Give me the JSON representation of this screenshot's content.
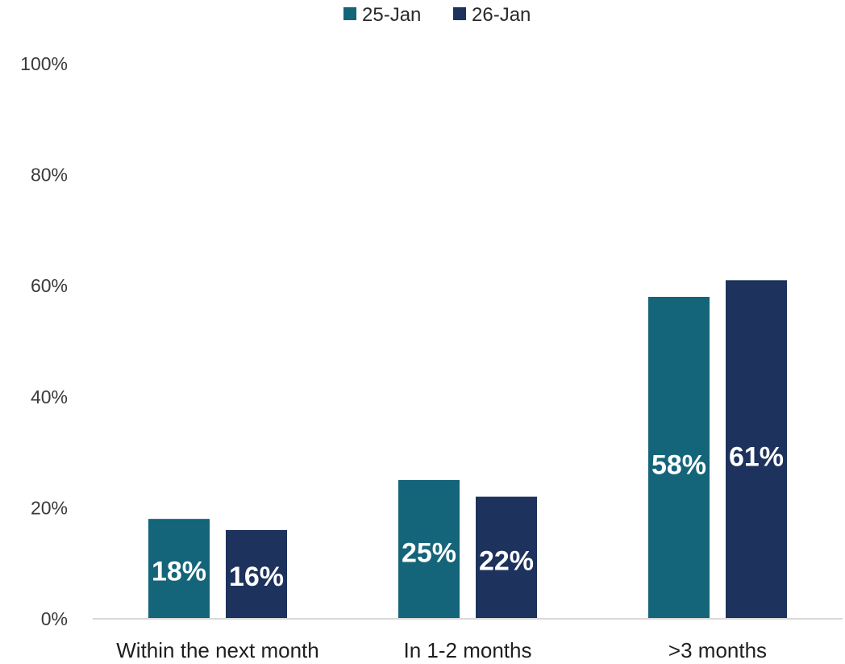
{
  "chart_data": {
    "type": "bar",
    "categories": [
      "Within the next month",
      "In 1-2 months",
      ">3 months"
    ],
    "series": [
      {
        "name": "25-Jan",
        "color": "#14647a",
        "values": [
          18,
          25,
          58
        ],
        "labels": [
          "18%",
          "25%",
          "58%"
        ]
      },
      {
        "name": "26-Jan",
        "color": "#1d325c",
        "values": [
          16,
          22,
          61
        ],
        "labels": [
          "16%",
          "22%",
          "61%"
        ]
      }
    ],
    "ylim": [
      0,
      100
    ],
    "yticks": [
      0,
      20,
      40,
      60,
      80,
      100
    ],
    "ytick_labels": [
      "0%",
      "20%",
      "40%",
      "60%",
      "80%",
      "100%"
    ],
    "legend_position": "top-center",
    "grid": false,
    "axis_color": "#d9d9d9"
  }
}
